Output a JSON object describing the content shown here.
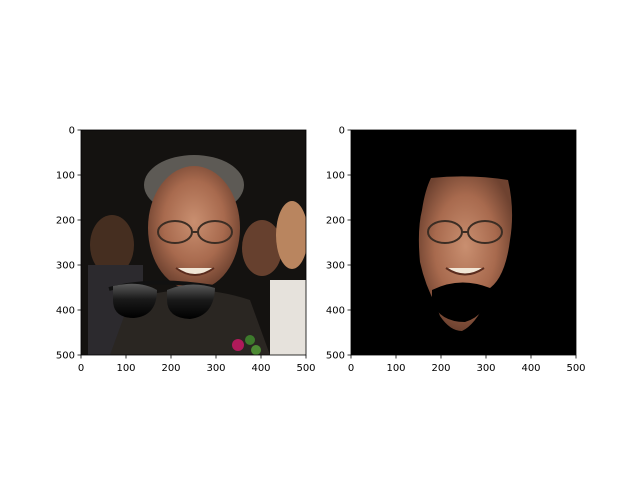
{
  "chart_data": [
    {
      "type": "image",
      "title": "",
      "xlabel": "",
      "ylabel": "",
      "xlim": [
        0,
        500
      ],
      "ylim": [
        500,
        0
      ],
      "xticks": [
        0,
        100,
        200,
        300,
        400,
        500
      ],
      "yticks": [
        0,
        100,
        200,
        300,
        400,
        500
      ],
      "grid": false,
      "content": "photo of smiling man with glasses, sunglasses overlay at mouth"
    },
    {
      "type": "image",
      "title": "",
      "xlabel": "",
      "ylabel": "",
      "xlim": [
        0,
        500
      ],
      "ylim": [
        500,
        0
      ],
      "xticks": [
        0,
        100,
        200,
        300,
        400,
        500
      ],
      "yticks": [
        0,
        100,
        200,
        300,
        400,
        500
      ],
      "grid": false,
      "content": "face-segmented image on black background, mouth region masked"
    }
  ]
}
